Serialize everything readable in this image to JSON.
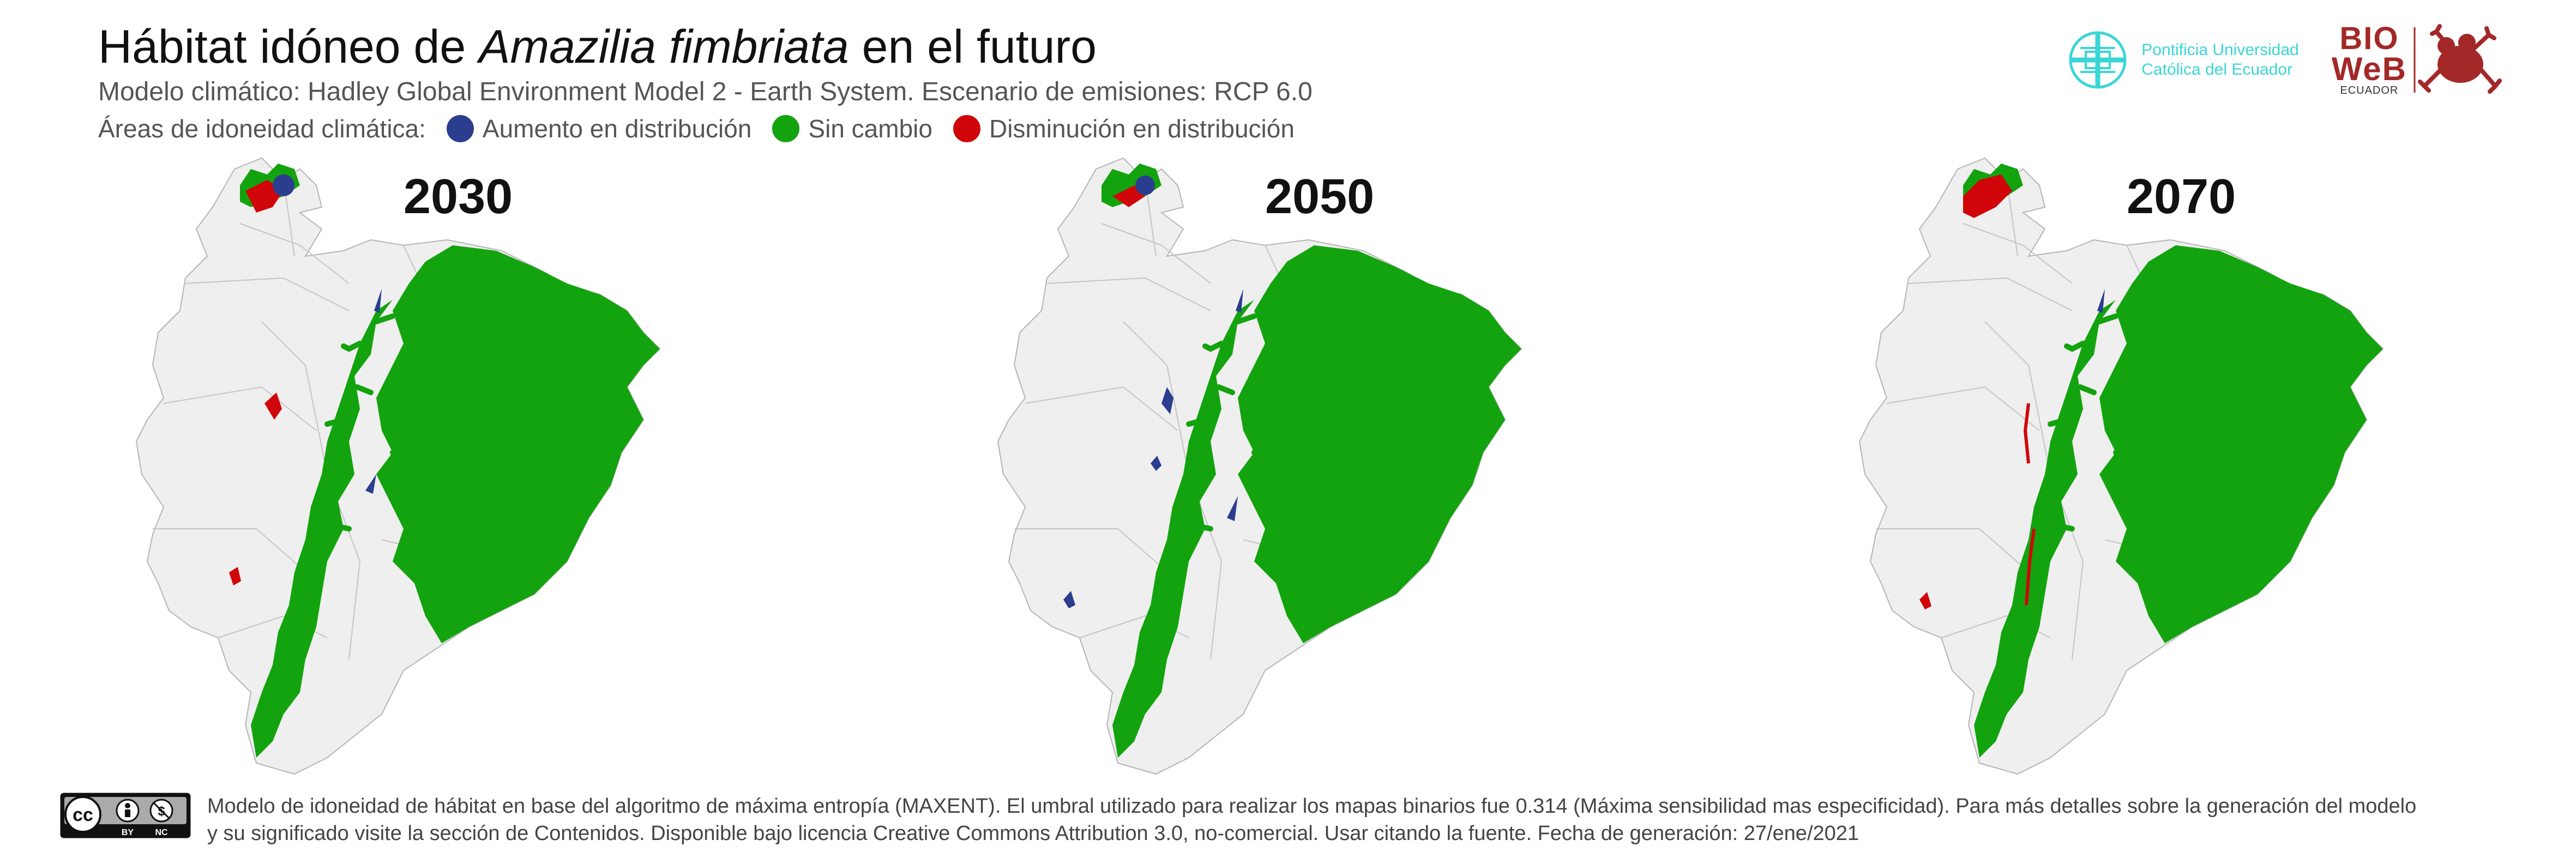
{
  "header": {
    "title_before": "Hábitat idóneo de ",
    "title_species": "Amazilia fimbriata",
    "title_after": " en el futuro",
    "subtitle": "Modelo climático: Hadley Global Environment Model 2 - Earth System. Escenario de emisiones: RCP 6.0",
    "legend_label": "Áreas de idoneidad climática:",
    "legend_items": [
      {
        "label": "Aumento en distribución",
        "color": "#2b3d8f"
      },
      {
        "label": "Sin cambio",
        "color": "#13a30e"
      },
      {
        "label": "Disminución en distribución",
        "color": "#d0060a"
      }
    ]
  },
  "logos": {
    "puce_line1": "Pontificia Universidad",
    "puce_line2": "Católica del Ecuador",
    "bioweb_line1": "BIO",
    "bioweb_line2": "WeB",
    "bioweb_line3": "ECUADOR",
    "puce_color": "#3ad6d6",
    "bioweb_color": "#a32828",
    "puce_icon": "cross-shield-icon",
    "bioweb_icon": "frog-icon"
  },
  "maps": [
    {
      "year": "2030",
      "scenario": "2030"
    },
    {
      "year": "2050",
      "scenario": "2050"
    },
    {
      "year": "2070",
      "scenario": "2070"
    }
  ],
  "colors": {
    "land": "#efefef",
    "border": "#b5b5b5",
    "increase": "#2b3d8f",
    "no_change": "#13a30e",
    "decrease": "#d0060a"
  },
  "footer": {
    "license_icon": "cc-by-nc-icon",
    "license_badge_by": "BY",
    "license_badge_nc": "NC",
    "line1": "Modelo de idoneidad de hábitat en base del algoritmo de máxima entropía (MAXENT). El umbral utilizado para realizar los mapas binarios fue 0.314 (Máxima sensibilidad mas especificidad). Para más detalles sobre la generación del modelo",
    "line2": "y su significado visite la sección de Contenidos. Disponible bajo licencia Creative Commons Attribution 3.0, no-comercial. Usar citando la fuente. Fecha de generación: 27/ene/2021"
  }
}
